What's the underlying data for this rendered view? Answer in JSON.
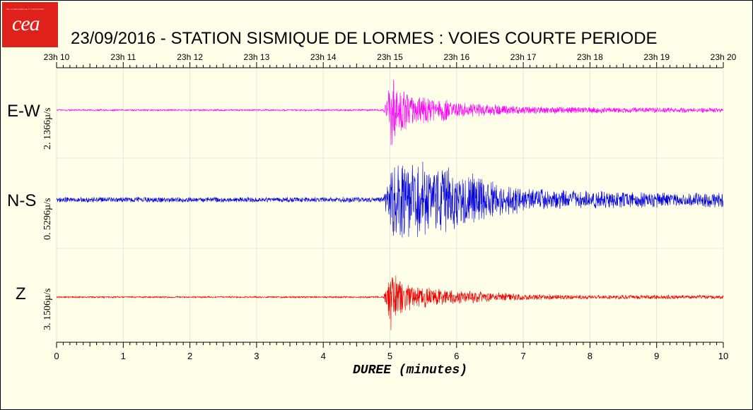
{
  "title": "23/09/2016  -  STATION SISMIQUE DE LORMES : VOIES COURTE PERIODE",
  "logo": {
    "text": "cea",
    "tagline": "DE LA RECHERCHE À L'INDUSTRIE"
  },
  "chart_data": {
    "type": "line",
    "xlabel": "DUREE (minutes)",
    "xlim": [
      0,
      10
    ],
    "x_ticks": [
      "0",
      "1",
      "2",
      "3",
      "4",
      "5",
      "6",
      "7",
      "8",
      "9",
      "10"
    ],
    "top_ticks": [
      "23h 10",
      "23h 11",
      "23h 12",
      "23h 13",
      "23h 14",
      "23h 15",
      "23h 16",
      "23h 17",
      "23h 18",
      "23h 19",
      "23h 20"
    ],
    "grid": true,
    "event_onset_minutes": 4.97,
    "series": [
      {
        "name": "E-W",
        "scale": "2. 1366µ/s",
        "color": "#ff00ff",
        "envelope": [
          [
            0,
            0.02
          ],
          [
            4.9,
            0.02
          ],
          [
            4.97,
            0.25
          ],
          [
            5.01,
            1.0
          ],
          [
            5.03,
            0.8
          ],
          [
            5.2,
            0.45
          ],
          [
            5.5,
            0.35
          ],
          [
            6.0,
            0.18
          ],
          [
            7.0,
            0.09
          ],
          [
            8.0,
            0.07
          ],
          [
            9.0,
            0.06
          ],
          [
            10.0,
            0.05
          ]
        ]
      },
      {
        "name": "N-S",
        "scale": "0. 5296µ/s",
        "color": "#0000dd",
        "envelope": [
          [
            0,
            0.07
          ],
          [
            4.9,
            0.07
          ],
          [
            4.98,
            0.55
          ],
          [
            5.05,
            1.0
          ],
          [
            5.5,
            0.95
          ],
          [
            6.0,
            0.75
          ],
          [
            6.3,
            0.6
          ],
          [
            7.0,
            0.3
          ],
          [
            8.0,
            0.22
          ],
          [
            9.0,
            0.2
          ],
          [
            10.0,
            0.2
          ]
        ]
      },
      {
        "name": "Z",
        "scale": "3. 1506µ/s",
        "color": "#ee0000",
        "envelope": [
          [
            0,
            0.02
          ],
          [
            4.9,
            0.02
          ],
          [
            4.97,
            0.3
          ],
          [
            5.01,
            1.0
          ],
          [
            5.03,
            0.7
          ],
          [
            5.2,
            0.35
          ],
          [
            5.5,
            0.25
          ],
          [
            6.0,
            0.15
          ],
          [
            7.0,
            0.07
          ],
          [
            8.0,
            0.05
          ],
          [
            9.0,
            0.05
          ],
          [
            10.0,
            0.04
          ]
        ]
      }
    ]
  }
}
